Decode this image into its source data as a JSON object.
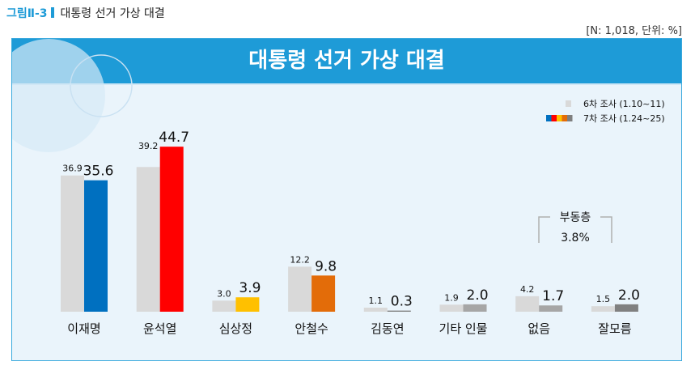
{
  "figure": {
    "number": "그림Ⅱ-3",
    "caption": "대통령 선거 가상 대결"
  },
  "note": "[N: 1,018, 단위: %]",
  "colors": {
    "banner": "#1e9bd7",
    "survey6": "#d9d9d9",
    "bars7": [
      "#0070c0",
      "#ff0000",
      "#ffc000",
      "#e36c09",
      "#7f7f7f",
      "#a6a6a6",
      "#a6a6a6",
      "#808080"
    ]
  },
  "chart_data": {
    "type": "bar",
    "title": "대통령 선거 가상 대결",
    "categories": [
      "이재명",
      "윤석열",
      "심상정",
      "안철수",
      "김동연",
      "기타 인물",
      "없음",
      "잘모름"
    ],
    "series": [
      {
        "name": "6차 조사 (1.10~11)",
        "values": [
          36.9,
          39.2,
          3.0,
          12.2,
          1.1,
          1.9,
          4.2,
          1.5
        ]
      },
      {
        "name": "7차 조사 (1.24~25)",
        "values": [
          35.6,
          44.7,
          3.9,
          9.8,
          0.3,
          2.0,
          1.7,
          2.0
        ]
      }
    ],
    "ylim": [
      0,
      50
    ],
    "legend_position": "top-right",
    "grid": false,
    "annotation": {
      "label": "부동층",
      "value": "3.8%"
    }
  }
}
